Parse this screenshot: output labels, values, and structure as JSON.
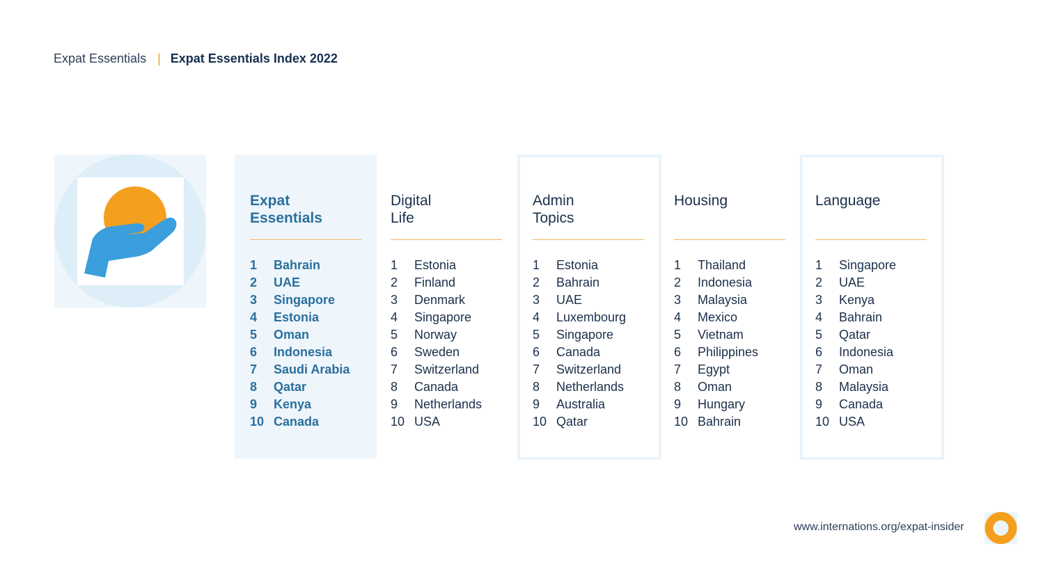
{
  "breadcrumb": {
    "section": "Expat Essentials",
    "separator": "|",
    "current": "Expat Essentials Index 2022"
  },
  "logo_icon": "hand-holding-sun-icon",
  "colors": {
    "accent_orange": "#f59f1e",
    "accent_blue": "#3a9fdc",
    "featured_text": "#2a6f9e",
    "panel_bg": "#eef6fb"
  },
  "columns": [
    {
      "title": "Expat\nEssentials",
      "items": [
        {
          "rank": "1",
          "country": "Bahrain"
        },
        {
          "rank": "2",
          "country": "UAE"
        },
        {
          "rank": "3",
          "country": "Singapore"
        },
        {
          "rank": "4",
          "country": "Estonia"
        },
        {
          "rank": "5",
          "country": "Oman"
        },
        {
          "rank": "6",
          "country": "Indonesia"
        },
        {
          "rank": "7",
          "country": "Saudi Arabia"
        },
        {
          "rank": "8",
          "country": "Qatar"
        },
        {
          "rank": "9",
          "country": "Kenya"
        },
        {
          "rank": "10",
          "country": "Canada"
        }
      ]
    },
    {
      "title": "Digital\nLife",
      "items": [
        {
          "rank": "1",
          "country": "Estonia"
        },
        {
          "rank": "2",
          "country": "Finland"
        },
        {
          "rank": "3",
          "country": "Denmark"
        },
        {
          "rank": "4",
          "country": "Singapore"
        },
        {
          "rank": "5",
          "country": "Norway"
        },
        {
          "rank": "6",
          "country": "Sweden"
        },
        {
          "rank": "7",
          "country": "Switzerland"
        },
        {
          "rank": "8",
          "country": "Canada"
        },
        {
          "rank": "9",
          "country": "Netherlands"
        },
        {
          "rank": "10",
          "country": "USA"
        }
      ]
    },
    {
      "title": "Admin\nTopics",
      "items": [
        {
          "rank": "1",
          "country": "Estonia"
        },
        {
          "rank": "2",
          "country": "Bahrain"
        },
        {
          "rank": "3",
          "country": "UAE"
        },
        {
          "rank": "4",
          "country": "Luxembourg"
        },
        {
          "rank": "5",
          "country": "Singapore"
        },
        {
          "rank": "6",
          "country": "Canada"
        },
        {
          "rank": "7",
          "country": "Switzerland"
        },
        {
          "rank": "8",
          "country": "Netherlands"
        },
        {
          "rank": "9",
          "country": "Australia"
        },
        {
          "rank": "10",
          "country": "Qatar"
        }
      ]
    },
    {
      "title": "Housing",
      "items": [
        {
          "rank": "1",
          "country": "Thailand"
        },
        {
          "rank": "2",
          "country": "Indonesia"
        },
        {
          "rank": "3",
          "country": "Malaysia"
        },
        {
          "rank": "4",
          "country": "Mexico"
        },
        {
          "rank": "5",
          "country": "Vietnam"
        },
        {
          "rank": "6",
          "country": "Philippines"
        },
        {
          "rank": "7",
          "country": "Egypt"
        },
        {
          "rank": "8",
          "country": "Oman"
        },
        {
          "rank": "9",
          "country": "Hungary"
        },
        {
          "rank": "10",
          "country": "Bahrain"
        }
      ]
    },
    {
      "title": "Language",
      "items": [
        {
          "rank": "1",
          "country": "Singapore"
        },
        {
          "rank": "2",
          "country": "UAE"
        },
        {
          "rank": "3",
          "country": "Kenya"
        },
        {
          "rank": "4",
          "country": "Bahrain"
        },
        {
          "rank": "5",
          "country": "Qatar"
        },
        {
          "rank": "6",
          "country": "Indonesia"
        },
        {
          "rank": "7",
          "country": "Oman"
        },
        {
          "rank": "8",
          "country": "Malaysia"
        },
        {
          "rank": "9",
          "country": "Canada"
        },
        {
          "rank": "10",
          "country": "USA"
        }
      ]
    }
  ],
  "footer": {
    "url": "www.internations.org/expat-insider",
    "logo_icon": "internations-ring-icon"
  }
}
